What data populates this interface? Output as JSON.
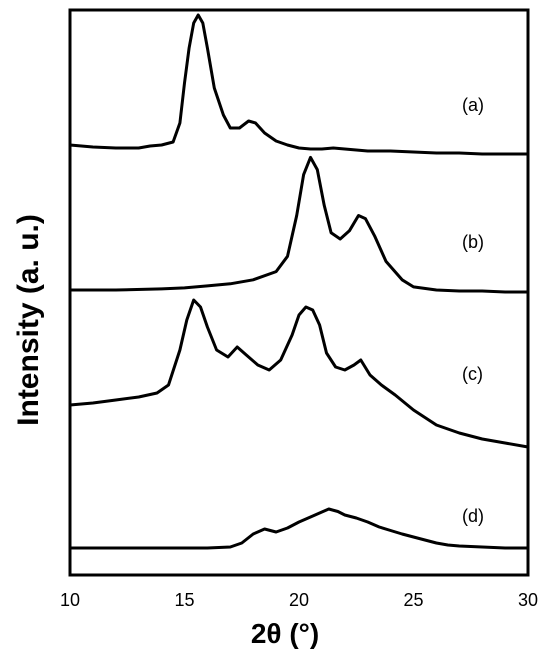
{
  "chart_data": {
    "type": "line",
    "xlabel": "2θ (°)",
    "ylabel": "Intensity (a. u.)",
    "xlim": [
      10,
      30
    ],
    "xticks": [
      "10",
      "15",
      "20",
      "25",
      "30"
    ],
    "yticks_shown": false,
    "grid": false,
    "legend": "none",
    "series": [
      {
        "name": "(a)",
        "x": [
          10,
          11,
          12,
          13,
          13.5,
          14,
          14.5,
          14.8,
          15.0,
          15.2,
          15.4,
          15.6,
          15.8,
          16.0,
          16.3,
          16.7,
          17.0,
          17.4,
          17.8,
          18.1,
          18.5,
          19.0,
          19.5,
          20,
          20.5,
          21,
          21.5,
          22,
          23,
          24,
          25,
          26,
          27,
          28,
          29,
          30
        ],
        "y": [
          0.08,
          0.06,
          0.05,
          0.05,
          0.07,
          0.08,
          0.11,
          0.3,
          0.7,
          1.05,
          1.3,
          1.38,
          1.3,
          1.05,
          0.65,
          0.38,
          0.25,
          0.25,
          0.32,
          0.3,
          0.2,
          0.12,
          0.08,
          0.05,
          0.04,
          0.04,
          0.05,
          0.04,
          0.02,
          0.02,
          0.01,
          0.0,
          0.0,
          -0.01,
          -0.01,
          -0.01
        ]
      },
      {
        "name": "(b)",
        "x": [
          10,
          12,
          14,
          15,
          16,
          17,
          18,
          19,
          19.5,
          19.9,
          20.2,
          20.5,
          20.8,
          21.1,
          21.4,
          21.8,
          22.2,
          22.6,
          22.9,
          23.3,
          23.8,
          24.5,
          25,
          26,
          27,
          28,
          29,
          30
        ],
        "y": [
          0.02,
          0.02,
          0.03,
          0.04,
          0.06,
          0.08,
          0.12,
          0.2,
          0.35,
          0.75,
          1.15,
          1.32,
          1.2,
          0.85,
          0.58,
          0.52,
          0.6,
          0.75,
          0.72,
          0.55,
          0.3,
          0.12,
          0.05,
          0.02,
          0.01,
          0.01,
          0.0,
          0.0
        ]
      },
      {
        "name": "(c)",
        "x": [
          10,
          11,
          12,
          13,
          13.8,
          14.3,
          14.8,
          15.1,
          15.4,
          15.7,
          16.0,
          16.4,
          16.9,
          17.3,
          17.7,
          18.2,
          18.7,
          19.2,
          19.7,
          20.0,
          20.3,
          20.6,
          20.9,
          21.2,
          21.6,
          22.0,
          22.4,
          22.7,
          23.1,
          23.6,
          24.2,
          25,
          26,
          27,
          28,
          29,
          30
        ],
        "y": [
          0.0,
          0.02,
          0.05,
          0.08,
          0.12,
          0.2,
          0.55,
          0.85,
          1.05,
          0.98,
          0.78,
          0.55,
          0.48,
          0.58,
          0.5,
          0.4,
          0.35,
          0.45,
          0.7,
          0.9,
          0.98,
          0.95,
          0.8,
          0.52,
          0.38,
          0.35,
          0.4,
          0.45,
          0.3,
          0.2,
          0.1,
          -0.05,
          -0.2,
          -0.28,
          -0.34,
          -0.38,
          -0.42
        ]
      },
      {
        "name": "(d)",
        "x": [
          10,
          11,
          12,
          13,
          14,
          15,
          16,
          17,
          17.5,
          18,
          18.5,
          19,
          19.5,
          20,
          20.5,
          21,
          21.3,
          21.7,
          22,
          22.5,
          23,
          23.5,
          24,
          24.5,
          25,
          25.5,
          26,
          26.5,
          27,
          27.5,
          28,
          28.5,
          29,
          30
        ],
        "y": [
          0.0,
          0.0,
          0.0,
          0.0,
          0.0,
          0.0,
          0.0,
          0.02,
          0.1,
          0.28,
          0.38,
          0.32,
          0.4,
          0.52,
          0.62,
          0.72,
          0.78,
          0.73,
          0.66,
          0.6,
          0.52,
          0.42,
          0.35,
          0.28,
          0.22,
          0.16,
          0.1,
          0.06,
          0.04,
          0.03,
          0.02,
          0.01,
          0.0,
          0.0
        ]
      }
    ]
  }
}
